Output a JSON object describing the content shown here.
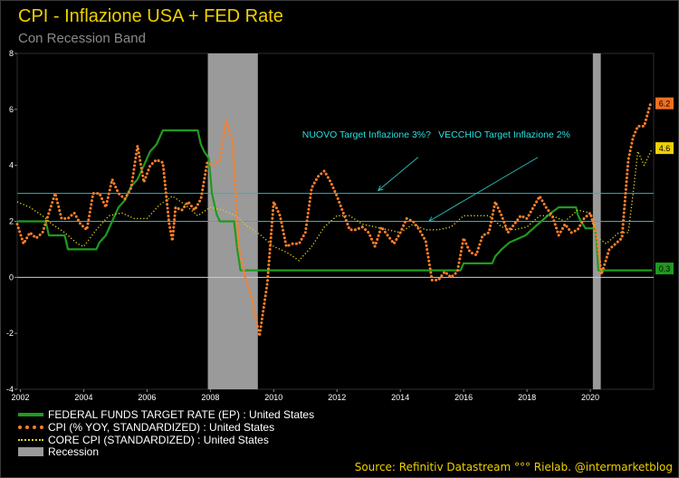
{
  "title": "CPI - Inflazione USA + FED Rate",
  "subtitle": "Con Recession Band",
  "source": "Source: Refinitiv Datastream °°° Rielab. @intermarketblog",
  "colors": {
    "background": "#000000",
    "title": "#f0d000",
    "fed": "#1f9a1f",
    "cpi": "#ff7f2a",
    "core": "#e8d21a",
    "recession": "#9a9a9a",
    "target_line": "#2fb3b3",
    "annotation": "#27e1e1",
    "grid": "#444444"
  },
  "legend": [
    {
      "label": "FEDERAL FUNDS TARGET RATE (EP) : United States",
      "key": "fed",
      "style": "solid"
    },
    {
      "label": "CPI (% YOY, STANDARDIZED) : United States",
      "key": "cpi",
      "style": "dotted"
    },
    {
      "label": "CORE CPI (STANDARDIZED) : United States",
      "key": "core",
      "style": "dotted"
    },
    {
      "label": "Recession",
      "key": "recession",
      "style": "band"
    }
  ],
  "chart_data": {
    "type": "line",
    "xlabel": "",
    "ylabel": "",
    "xlim": [
      2001.9,
      2022.0
    ],
    "ylim": [
      -4,
      8
    ],
    "x_ticks": [
      "2002",
      "2004",
      "2006",
      "2008",
      "2010",
      "2012",
      "2014",
      "2016",
      "2018",
      "2020"
    ],
    "y_ticks": [
      "8",
      "6",
      "4",
      "2",
      "0",
      "-2",
      "-4"
    ],
    "recession_bands": [
      [
        2007.92,
        2009.5
      ],
      [
        2020.08,
        2020.33
      ]
    ],
    "reference_lines": [
      {
        "y": 3
      },
      {
        "y": 2
      },
      {
        "y": 0
      }
    ],
    "annotations": [
      {
        "text": "NUOVO Target Inflazione 3%?",
        "x": 2010.9,
        "y": 5.0,
        "arrow_to": [
          2013.3,
          3.1
        ]
      },
      {
        "text": "VECCHIO Target Inflazione 2%",
        "x": 2015.2,
        "y": 5.0,
        "arrow_to": [
          2014.9,
          2.0
        ]
      }
    ],
    "last_value_labels": [
      {
        "series": "cpi",
        "value": "6.2"
      },
      {
        "series": "core",
        "value": "4.6"
      },
      {
        "series": "fed",
        "value": "0.3"
      }
    ],
    "series": [
      {
        "name": "FEDERAL FUNDS TARGET RATE (EP) : United States",
        "key": "fed",
        "style": "solid",
        "points": [
          [
            2001.9,
            2.0
          ],
          [
            2002.8,
            2.0
          ],
          [
            2002.9,
            1.5
          ],
          [
            2003.4,
            1.5
          ],
          [
            2003.5,
            1.0
          ],
          [
            2004.4,
            1.0
          ],
          [
            2004.5,
            1.25
          ],
          [
            2004.7,
            1.5
          ],
          [
            2004.9,
            2.0
          ],
          [
            2005.1,
            2.5
          ],
          [
            2005.3,
            2.75
          ],
          [
            2005.5,
            3.25
          ],
          [
            2005.7,
            3.5
          ],
          [
            2005.9,
            4.0
          ],
          [
            2006.1,
            4.5
          ],
          [
            2006.3,
            4.75
          ],
          [
            2006.5,
            5.25
          ],
          [
            2007.6,
            5.25
          ],
          [
            2007.7,
            4.75
          ],
          [
            2007.8,
            4.5
          ],
          [
            2007.95,
            4.25
          ],
          [
            2008.05,
            3.0
          ],
          [
            2008.2,
            2.25
          ],
          [
            2008.3,
            2.0
          ],
          [
            2008.75,
            2.0
          ],
          [
            2008.8,
            1.5
          ],
          [
            2008.85,
            1.0
          ],
          [
            2008.95,
            0.25
          ],
          [
            2015.9,
            0.25
          ],
          [
            2016.0,
            0.5
          ],
          [
            2016.9,
            0.5
          ],
          [
            2017.0,
            0.75
          ],
          [
            2017.2,
            1.0
          ],
          [
            2017.45,
            1.25
          ],
          [
            2017.95,
            1.5
          ],
          [
            2018.2,
            1.75
          ],
          [
            2018.45,
            2.0
          ],
          [
            2018.7,
            2.25
          ],
          [
            2019.0,
            2.5
          ],
          [
            2019.55,
            2.5
          ],
          [
            2019.6,
            2.25
          ],
          [
            2019.7,
            2.0
          ],
          [
            2019.85,
            1.75
          ],
          [
            2020.15,
            1.75
          ],
          [
            2020.2,
            1.25
          ],
          [
            2020.25,
            0.25
          ],
          [
            2021.95,
            0.25
          ]
        ]
      },
      {
        "name": "CPI (% YOY, STANDARDIZED) : United States",
        "key": "cpi",
        "style": "dotted",
        "points": [
          [
            2001.9,
            1.9
          ],
          [
            2002.1,
            1.2
          ],
          [
            2002.3,
            1.6
          ],
          [
            2002.5,
            1.4
          ],
          [
            2002.7,
            1.6
          ],
          [
            2002.9,
            2.3
          ],
          [
            2003.1,
            3.0
          ],
          [
            2003.3,
            2.1
          ],
          [
            2003.5,
            2.1
          ],
          [
            2003.7,
            2.3
          ],
          [
            2003.9,
            1.9
          ],
          [
            2004.1,
            1.7
          ],
          [
            2004.3,
            3.0
          ],
          [
            2004.5,
            3.0
          ],
          [
            2004.7,
            2.5
          ],
          [
            2004.9,
            3.5
          ],
          [
            2005.1,
            3.0
          ],
          [
            2005.3,
            2.8
          ],
          [
            2005.5,
            3.2
          ],
          [
            2005.7,
            4.7
          ],
          [
            2005.9,
            3.4
          ],
          [
            2006.1,
            4.0
          ],
          [
            2006.3,
            4.2
          ],
          [
            2006.5,
            4.1
          ],
          [
            2006.7,
            1.9
          ],
          [
            2006.8,
            1.3
          ],
          [
            2006.9,
            2.5
          ],
          [
            2007.1,
            2.4
          ],
          [
            2007.3,
            2.7
          ],
          [
            2007.5,
            2.4
          ],
          [
            2007.7,
            2.8
          ],
          [
            2007.9,
            4.1
          ],
          [
            2008.1,
            4.0
          ],
          [
            2008.3,
            4.2
          ],
          [
            2008.5,
            5.6
          ],
          [
            2008.7,
            4.9
          ],
          [
            2008.9,
            1.1
          ],
          [
            2009.1,
            0.0
          ],
          [
            2009.3,
            -0.7
          ],
          [
            2009.55,
            -2.1
          ],
          [
            2009.8,
            -0.2
          ],
          [
            2010.0,
            2.7
          ],
          [
            2010.2,
            2.2
          ],
          [
            2010.4,
            1.1
          ],
          [
            2010.6,
            1.2
          ],
          [
            2010.8,
            1.2
          ],
          [
            2011.0,
            1.6
          ],
          [
            2011.2,
            3.2
          ],
          [
            2011.4,
            3.6
          ],
          [
            2011.6,
            3.8
          ],
          [
            2011.8,
            3.4
          ],
          [
            2012.0,
            2.9
          ],
          [
            2012.2,
            2.3
          ],
          [
            2012.4,
            1.7
          ],
          [
            2012.6,
            1.7
          ],
          [
            2012.8,
            1.8
          ],
          [
            2013.0,
            1.6
          ],
          [
            2013.2,
            1.1
          ],
          [
            2013.4,
            1.8
          ],
          [
            2013.6,
            1.5
          ],
          [
            2013.8,
            1.2
          ],
          [
            2014.0,
            1.6
          ],
          [
            2014.2,
            2.1
          ],
          [
            2014.4,
            2.0
          ],
          [
            2014.6,
            1.7
          ],
          [
            2014.8,
            1.3
          ],
          [
            2015.0,
            -0.1
          ],
          [
            2015.2,
            -0.1
          ],
          [
            2015.4,
            0.2
          ],
          [
            2015.6,
            0.0
          ],
          [
            2015.8,
            0.2
          ],
          [
            2016.0,
            1.4
          ],
          [
            2016.2,
            0.9
          ],
          [
            2016.4,
            0.8
          ],
          [
            2016.6,
            1.5
          ],
          [
            2016.8,
            1.6
          ],
          [
            2017.0,
            2.7
          ],
          [
            2017.2,
            2.2
          ],
          [
            2017.4,
            1.6
          ],
          [
            2017.6,
            1.9
          ],
          [
            2017.8,
            2.2
          ],
          [
            2018.0,
            2.1
          ],
          [
            2018.2,
            2.5
          ],
          [
            2018.4,
            2.9
          ],
          [
            2018.6,
            2.5
          ],
          [
            2018.8,
            2.2
          ],
          [
            2019.0,
            1.5
          ],
          [
            2019.2,
            1.9
          ],
          [
            2019.4,
            1.6
          ],
          [
            2019.6,
            1.7
          ],
          [
            2019.8,
            2.1
          ],
          [
            2020.0,
            2.3
          ],
          [
            2020.2,
            1.5
          ],
          [
            2020.35,
            0.1
          ],
          [
            2020.6,
            1.0
          ],
          [
            2020.8,
            1.2
          ],
          [
            2021.0,
            1.4
          ],
          [
            2021.2,
            4.2
          ],
          [
            2021.35,
            5.0
          ],
          [
            2021.5,
            5.4
          ],
          [
            2021.7,
            5.4
          ],
          [
            2021.9,
            6.2
          ]
        ]
      },
      {
        "name": "CORE CPI (STANDARDIZED) : United States",
        "key": "core",
        "style": "dotted",
        "points": [
          [
            2001.9,
            2.7
          ],
          [
            2002.3,
            2.5
          ],
          [
            2002.7,
            2.2
          ],
          [
            2003.0,
            1.9
          ],
          [
            2003.4,
            1.6
          ],
          [
            2003.8,
            1.2
          ],
          [
            2004.0,
            1.1
          ],
          [
            2004.4,
            1.7
          ],
          [
            2004.8,
            2.2
          ],
          [
            2005.2,
            2.3
          ],
          [
            2005.6,
            2.1
          ],
          [
            2006.0,
            2.1
          ],
          [
            2006.4,
            2.6
          ],
          [
            2006.8,
            2.9
          ],
          [
            2007.2,
            2.6
          ],
          [
            2007.6,
            2.2
          ],
          [
            2008.0,
            2.5
          ],
          [
            2008.4,
            2.4
          ],
          [
            2008.8,
            2.2
          ],
          [
            2009.2,
            1.8
          ],
          [
            2009.6,
            1.5
          ],
          [
            2010.0,
            1.1
          ],
          [
            2010.4,
            0.9
          ],
          [
            2010.8,
            0.6
          ],
          [
            2011.2,
            1.1
          ],
          [
            2011.6,
            1.8
          ],
          [
            2012.0,
            2.2
          ],
          [
            2012.4,
            2.2
          ],
          [
            2012.8,
            1.9
          ],
          [
            2013.2,
            1.8
          ],
          [
            2013.6,
            1.7
          ],
          [
            2014.0,
            1.6
          ],
          [
            2014.4,
            1.9
          ],
          [
            2014.8,
            1.7
          ],
          [
            2015.2,
            1.7
          ],
          [
            2015.6,
            1.8
          ],
          [
            2016.0,
            2.2
          ],
          [
            2016.4,
            2.2
          ],
          [
            2016.8,
            2.2
          ],
          [
            2017.2,
            1.8
          ],
          [
            2017.6,
            1.7
          ],
          [
            2018.0,
            1.8
          ],
          [
            2018.4,
            2.2
          ],
          [
            2018.8,
            2.2
          ],
          [
            2019.2,
            2.0
          ],
          [
            2019.6,
            2.4
          ],
          [
            2020.0,
            2.3
          ],
          [
            2020.25,
            1.4
          ],
          [
            2020.5,
            1.2
          ],
          [
            2020.9,
            1.6
          ],
          [
            2021.2,
            1.6
          ],
          [
            2021.35,
            3.0
          ],
          [
            2021.5,
            4.5
          ],
          [
            2021.7,
            4.0
          ],
          [
            2021.95,
            4.6
          ]
        ]
      }
    ]
  }
}
